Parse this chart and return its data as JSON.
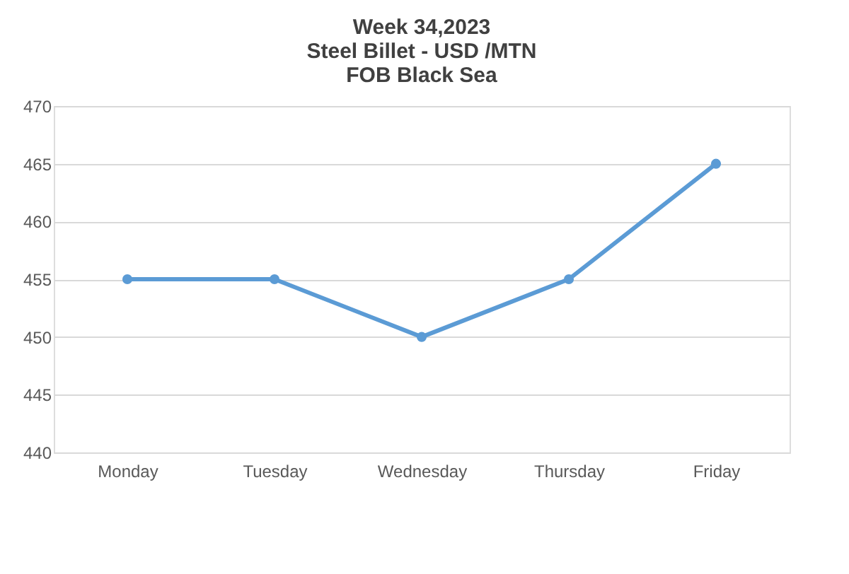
{
  "chart_data": {
    "type": "line",
    "title": [
      "Week 34,2023",
      "Steel Billet - USD /MTN",
      "FOB Black Sea"
    ],
    "categories": [
      "Monday",
      "Tuesday",
      "Wednesday",
      "Thursday",
      "Friday"
    ],
    "series": [
      {
        "color": "#5b9bd5",
        "values": [
          455,
          455,
          450,
          455,
          465
        ]
      }
    ],
    "ylim": [
      440,
      470
    ],
    "yticks": [
      440,
      445,
      450,
      455,
      460,
      465,
      470
    ],
    "grid": "y",
    "marker": "circle",
    "line_style": "solid"
  }
}
